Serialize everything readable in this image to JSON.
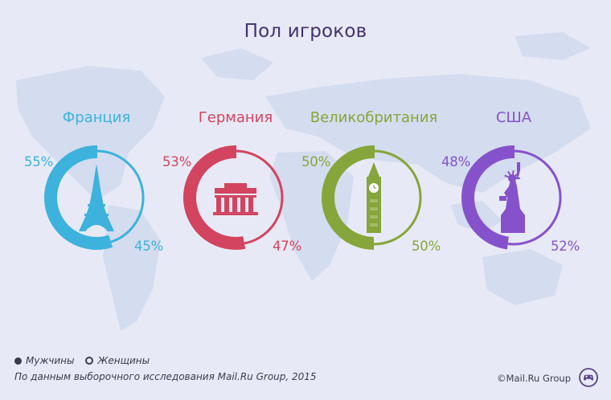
{
  "title": "Пол игроков",
  "legend": {
    "male": "Мужчины",
    "female": "Женщины"
  },
  "source": "По данным выборочного исследования Mail.Ru Group, 2015",
  "copyright": "©Mail.Ru Group",
  "colors": {
    "france": "#3cb2dc",
    "germany": "#d2445f",
    "uk": "#86a53a",
    "usa": "#8552cc",
    "text_dark": "#45306f"
  },
  "icons": {
    "france": "eiffel-tower-icon",
    "germany": "brandenburg-gate-icon",
    "uk": "big-ben-icon",
    "usa": "statue-of-liberty-icon",
    "logo": "gamepad-icon"
  },
  "chart_data": {
    "type": "pie",
    "title": "Пол игроков",
    "series_names": [
      "Мужчины",
      "Женщины"
    ],
    "charts": [
      {
        "key": "france",
        "category": "Франция",
        "male": "55%",
        "female": "45%",
        "male_value": 55,
        "female_value": 45
      },
      {
        "key": "germany",
        "category": "Германия",
        "male": "53%",
        "female": "47%",
        "male_value": 53,
        "female_value": 47
      },
      {
        "key": "uk",
        "category": "Великобритания",
        "male": "50%",
        "female": "50%",
        "male_value": 50,
        "female_value": 50
      },
      {
        "key": "usa",
        "category": "США",
        "male": "48%",
        "female": "52%",
        "male_value": 48,
        "female_value": 52
      }
    ]
  }
}
